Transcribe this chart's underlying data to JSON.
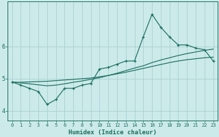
{
  "xlabel": "Humidex (Indice chaleur)",
  "bg_color": "#cceaea",
  "grid_color": "#aacfcf",
  "line_color": "#1a6e60",
  "x_data": [
    0,
    1,
    2,
    3,
    4,
    5,
    6,
    7,
    8,
    9,
    10,
    11,
    12,
    13,
    14,
    15,
    16,
    17,
    18,
    19,
    20,
    21,
    22,
    23
  ],
  "y_main": [
    4.9,
    4.8,
    4.7,
    4.6,
    4.2,
    4.35,
    4.7,
    4.7,
    4.8,
    4.85,
    5.3,
    5.35,
    5.45,
    5.55,
    5.55,
    6.3,
    7.0,
    6.6,
    6.3,
    6.05,
    6.05,
    5.95,
    5.9,
    5.55
  ],
  "y_trend1": [
    4.9,
    4.87,
    4.84,
    4.81,
    4.78,
    4.8,
    4.84,
    4.89,
    4.93,
    4.98,
    5.03,
    5.1,
    5.17,
    5.25,
    5.33,
    5.4,
    5.5,
    5.58,
    5.65,
    5.72,
    5.78,
    5.83,
    5.88,
    5.92
  ],
  "y_trend2": [
    4.88,
    4.89,
    4.9,
    4.91,
    4.92,
    4.94,
    4.96,
    4.98,
    5.0,
    5.02,
    5.06,
    5.1,
    5.15,
    5.2,
    5.26,
    5.32,
    5.38,
    5.44,
    5.5,
    5.55,
    5.59,
    5.62,
    5.65,
    5.67
  ],
  "yticks": [
    4,
    5,
    6
  ],
  "ylim": [
    3.7,
    7.4
  ],
  "xlim": [
    -0.5,
    23.5
  ],
  "tick_label_fontsize": 5.0,
  "xlabel_fontsize": 6.5
}
